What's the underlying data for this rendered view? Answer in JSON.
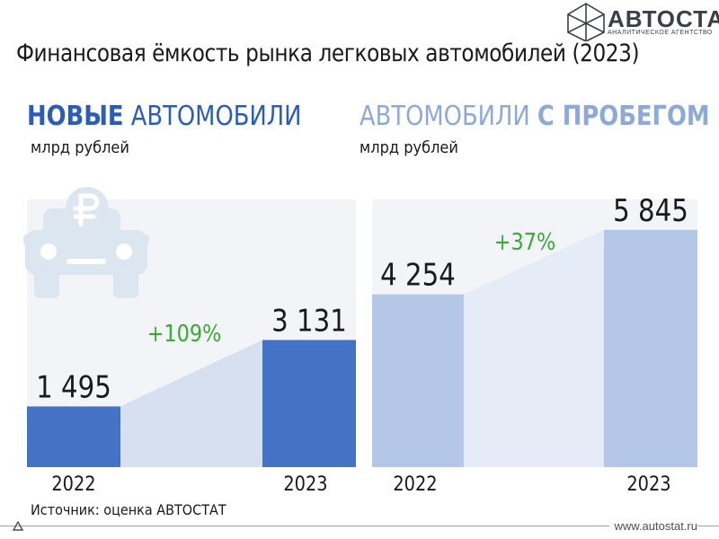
{
  "logo": {
    "name": "АВТОСТАТ",
    "subtitle": "аналитическое агентство"
  },
  "title": "Финансовая ёмкость рынка легковых автомобилей (2023)",
  "sections": {
    "new": {
      "heading_bold": "НОВЫЕ",
      "heading_light": "АВТОМОБИЛИ",
      "unit": "млрд рублей"
    },
    "used": {
      "heading_light": "АВТОМОБИЛИ",
      "heading_bold": "С ПРОБЕГОМ",
      "unit": "млрд рублей"
    }
  },
  "chart_data": [
    {
      "type": "bar",
      "categories": [
        "2022",
        "2023"
      ],
      "values": [
        1495,
        3131
      ],
      "value_labels": [
        "1 495",
        "3 131"
      ],
      "change_label": "+109%",
      "color": "#4472c4",
      "band_color": "#d6e0f0",
      "icon": "car-ruble-icon"
    },
    {
      "type": "bar",
      "categories": [
        "2022",
        "2023"
      ],
      "values": [
        4254,
        5845
      ],
      "value_labels": [
        "4 254",
        "5 845"
      ],
      "change_label": "+37%",
      "color": "#b4c7e7",
      "band_color": "#e6ecf7"
    }
  ],
  "colors": {
    "change_text": "#3aa935",
    "panel_bg": "#f2f4f8"
  },
  "source": "Источник: оценка АВТОСТАТ",
  "url": "www.autostat.ru"
}
